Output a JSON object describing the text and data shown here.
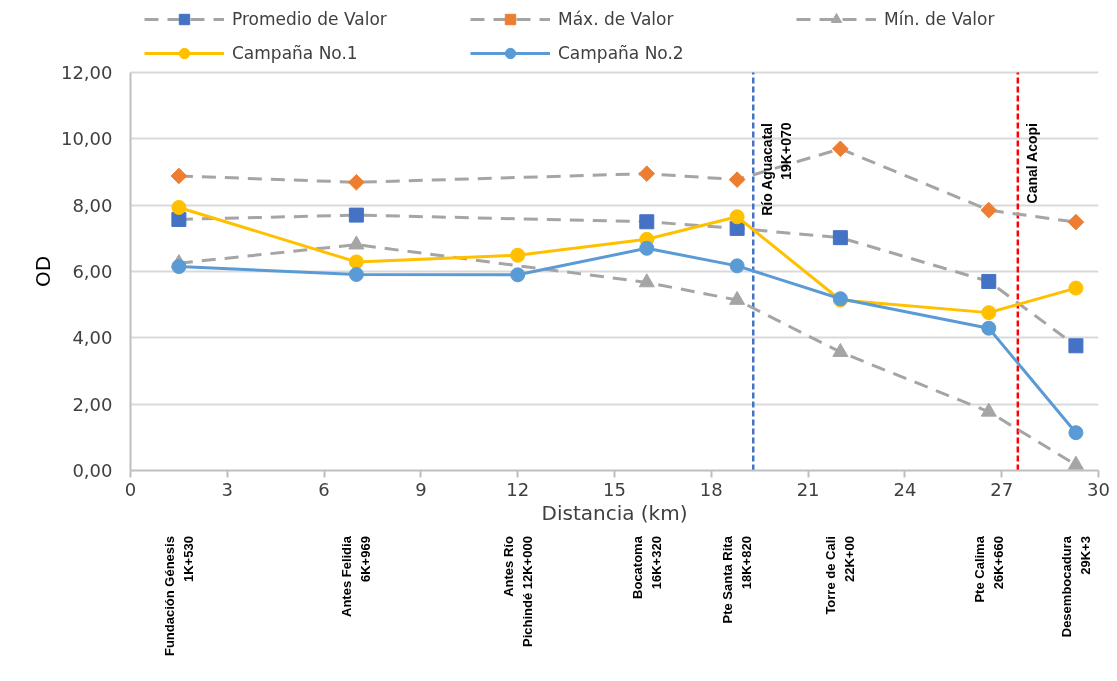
{
  "chart_data": {
    "type": "line",
    "xlabel": "Distancia (km)",
    "ylabel": "OD",
    "x": [
      1.5,
      7.0,
      12.0,
      16.0,
      18.8,
      22.0,
      26.6,
      29.3
    ],
    "series": [
      {
        "name": "Promedio de Valor",
        "color": "#a5a5a5",
        "colors": [
          "#4472c4",
          "#4472c4",
          "#4472c4",
          "#4472c4",
          "#4472c4",
          "#4472c4",
          "#4472c4"
        ],
        "marker": "square",
        "line_style": "dashed",
        "x": [
          1.5,
          7.0,
          16.0,
          18.8,
          22.0,
          26.6,
          29.3
        ],
        "values": [
          7.57,
          7.7,
          7.5,
          7.3,
          7.02,
          5.7,
          3.76
        ]
      },
      {
        "name": "Máx. de Valor",
        "color": "#a5a5a5",
        "colors": [
          "#ed7d31",
          "#ed7d31",
          "#ed7d31",
          "#ed7d31",
          "#ed7d31",
          "#ed7d31",
          "#ed7d31"
        ],
        "marker": "diamond",
        "line_style": "dashed",
        "x": [
          1.5,
          7.0,
          16.0,
          18.8,
          22.0,
          26.6,
          29.3
        ],
        "values": [
          8.88,
          8.69,
          8.95,
          8.77,
          9.7,
          7.85,
          7.49
        ]
      },
      {
        "name": "Mín. de Valor",
        "color": "#a5a5a5",
        "colors": [
          "#a5a5a5",
          "#a5a5a5",
          "#a5a5a5",
          "#a5a5a5",
          "#a5a5a5",
          "#a5a5a5",
          "#a5a5a5"
        ],
        "marker": "triangle",
        "line_style": "dashed",
        "x": [
          1.5,
          7.0,
          16.0,
          18.8,
          22.0,
          26.6,
          29.3
        ],
        "values": [
          6.25,
          6.81,
          5.67,
          5.14,
          3.57,
          1.77,
          0.17
        ]
      },
      {
        "name": "Campaña No.1",
        "color": "#ffc000",
        "marker": "circle",
        "line_style": "solid",
        "values": [
          7.93,
          6.29,
          6.49,
          6.97,
          7.65,
          5.14,
          4.76,
          5.5
        ]
      },
      {
        "name": "Campaña No.2",
        "color": "#5b9bd5",
        "marker": "circle",
        "line_style": "solid",
        "values": [
          6.15,
          5.91,
          5.9,
          6.7,
          6.17,
          5.18,
          4.29,
          1.14
        ]
      }
    ],
    "xlim": [
      0,
      30
    ],
    "xticks": [
      0,
      3,
      6,
      9,
      12,
      15,
      18,
      21,
      24,
      27,
      30
    ],
    "ylim": [
      0,
      12
    ],
    "yticks": [
      {
        "value": 0,
        "label": "0,00"
      },
      {
        "value": 2,
        "label": "2,00"
      },
      {
        "value": 4,
        "label": "4,00"
      },
      {
        "value": 6,
        "label": "6,00"
      },
      {
        "value": 8,
        "label": "8,00"
      },
      {
        "value": 10,
        "label": "10,00"
      },
      {
        "value": 12,
        "label": "12,00"
      }
    ],
    "annotations": [
      "Fundación Génesis\n1K+530",
      "Antes Felidia\n6K+969",
      "Antes Río\nPichindé 12K+000",
      "Bocatoma\n16K+320",
      "Pte Santa Rita\n18K+820",
      "Torre de Cali\n22K+00",
      "Pte Calima\n26K+660",
      "Desembocadura\n29K+3"
    ],
    "ref_lines": [
      {
        "axis": "x",
        "value": 19.3,
        "label": "Río Aguacatal\n19K+070",
        "color": "#4472c4",
        "line_style": "dashed"
      },
      {
        "axis": "x",
        "value": 27.5,
        "label": "Canal Acopi",
        "color": "#ff0000",
        "line_style": "dashed"
      }
    ],
    "grid": "y",
    "legend": "top"
  }
}
